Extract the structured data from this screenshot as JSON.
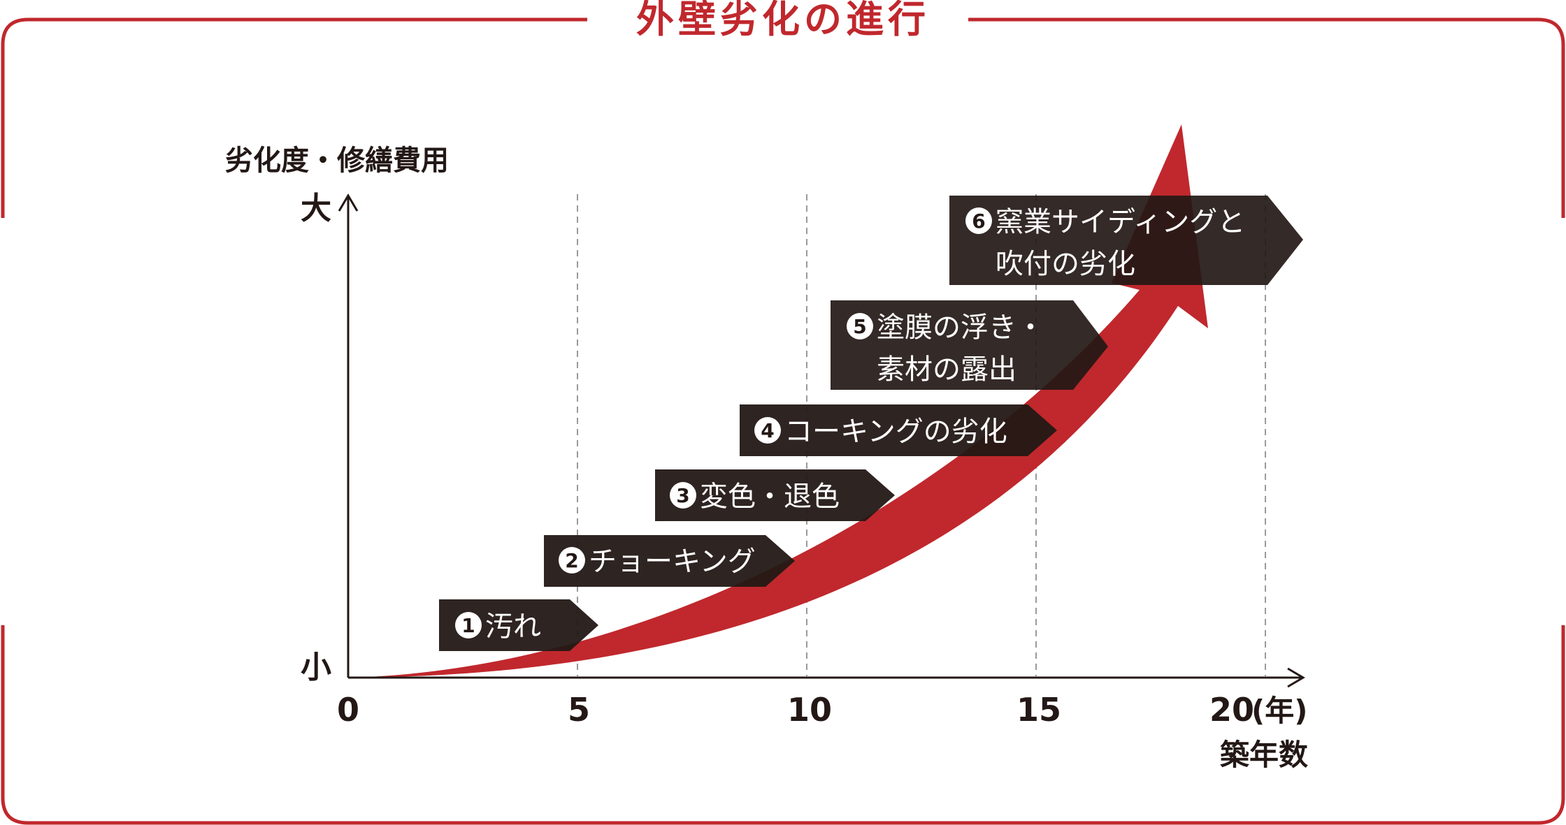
{
  "title": "外壁劣化の進行",
  "colors": {
    "frame": "#c0282d",
    "arrow": "#c0282d",
    "label_bg": "#231815",
    "label_text": "#ffffff",
    "axis": "#231815",
    "grid": "#9a9a9a"
  },
  "y_axis": {
    "title": "劣化度・修繕費用",
    "top": "大",
    "bottom": "小"
  },
  "x_axis": {
    "ticks": [
      "0",
      "5",
      "10",
      "15",
      "20"
    ],
    "unit": "(年)",
    "title": "築年数"
  },
  "stages": [
    {
      "num": "1",
      "lines": [
        "汚れ"
      ]
    },
    {
      "num": "2",
      "lines": [
        "チョーキング"
      ]
    },
    {
      "num": "3",
      "lines": [
        "変色・退色"
      ]
    },
    {
      "num": "4",
      "lines": [
        "コーキングの劣化"
      ]
    },
    {
      "num": "5",
      "lines": [
        "塗膜の浮き・",
        "素材の露出"
      ]
    },
    {
      "num": "6",
      "lines": [
        "窯業サイディングと",
        "吹付の劣化"
      ]
    }
  ]
}
